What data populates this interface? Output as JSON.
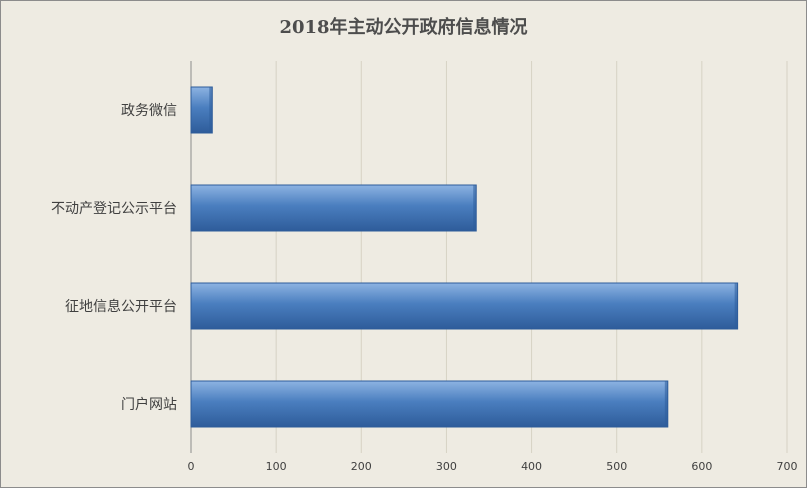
{
  "chart_data": {
    "type": "bar",
    "orientation": "horizontal",
    "title": "2018年主动公开政府信息情况",
    "categories": [
      "政务微信",
      "不动产登记公示平台",
      "征地信息公开平台",
      "门户网站"
    ],
    "values": [
      25,
      335,
      642,
      560
    ],
    "xlim": [
      0,
      700
    ],
    "x_ticks": [
      "0",
      "100",
      "200",
      "300",
      "400",
      "500",
      "600",
      "700"
    ],
    "grid": "vertical",
    "legend": "none",
    "colors": {
      "bar": "#4a7ebf",
      "bar_light": "#8db3e2",
      "bar_dark": "#2e5c9a",
      "background": "#eeebe2",
      "grid": "#d6d2c4",
      "axis": "#8c8c8c"
    }
  }
}
